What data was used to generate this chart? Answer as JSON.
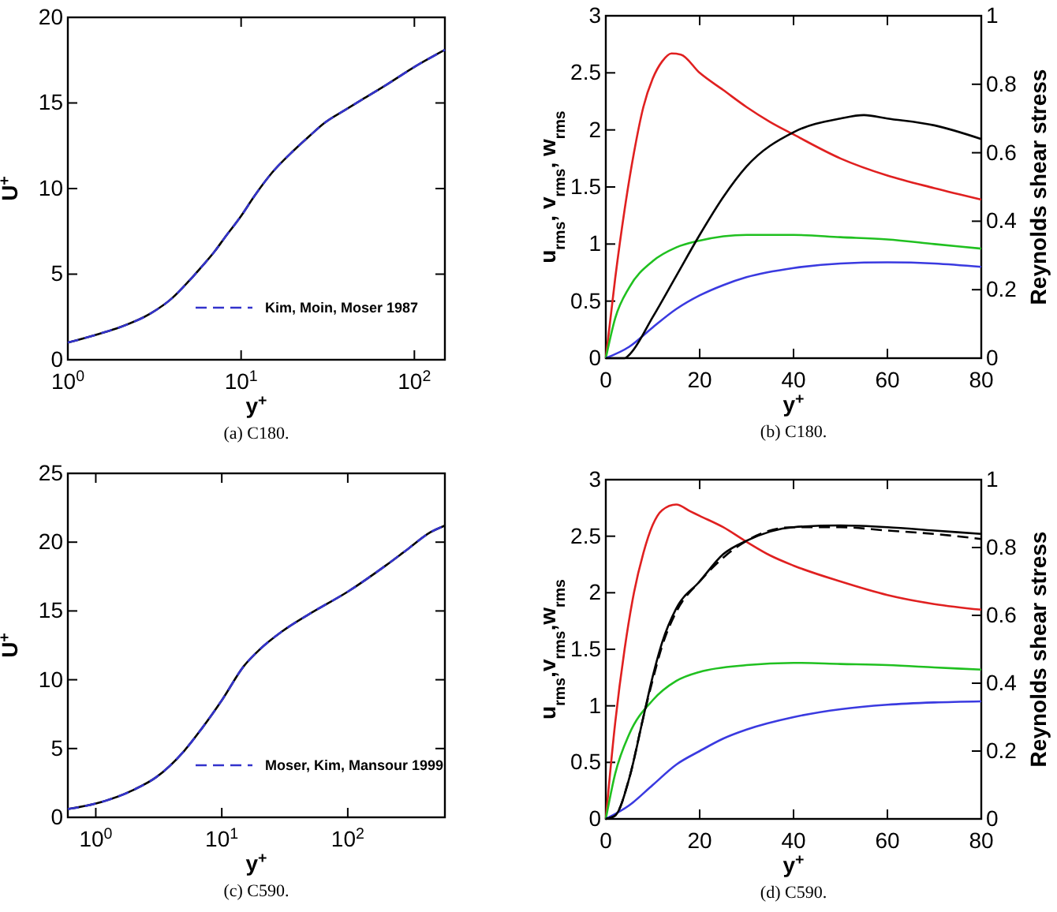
{
  "chart_data": [
    {
      "type": "line",
      "xlabel": "y$^{+}$",
      "ylabel": "U$^{+}$",
      "log": "x",
      "xlim": [
        1,
        150
      ],
      "xticks": [
        {
          "value": 1,
          "label": "10$^{0}$"
        },
        {
          "value": 10,
          "label": "10$^{1}$"
        },
        {
          "value": 100,
          "label": "10$^{2}$"
        }
      ],
      "ylim": [
        0,
        20
      ],
      "yticks": [
        0,
        5,
        10,
        15,
        20
      ],
      "legend": "bottom right",
      "annotations": [
        "(a) C180."
      ],
      "series": [
        {
          "color": "#000000",
          "line_style": "solid",
          "x": [
            1,
            1.5,
            2,
            3,
            4,
            5,
            6,
            7,
            8,
            10,
            12,
            15,
            20,
            25,
            30,
            40,
            50,
            70,
            100,
            150
          ],
          "values": [
            1.0,
            1.5,
            1.9,
            2.7,
            3.6,
            4.6,
            5.5,
            6.3,
            7.1,
            8.4,
            9.6,
            10.9,
            12.2,
            13.1,
            13.8,
            14.6,
            15.2,
            16.1,
            17.1,
            18.1
          ]
        },
        {
          "name": "Kim, Moin, Moser 1987",
          "color": "#3333cc",
          "line_style": "dashed",
          "x": [
            1,
            1.5,
            2,
            3,
            4,
            5,
            6,
            7,
            8,
            10,
            12,
            15,
            20,
            25,
            30,
            40,
            50,
            70,
            100,
            150
          ],
          "values": [
            1.0,
            1.5,
            1.9,
            2.7,
            3.6,
            4.6,
            5.5,
            6.3,
            7.1,
            8.4,
            9.6,
            10.9,
            12.2,
            13.1,
            13.8,
            14.6,
            15.2,
            16.1,
            17.1,
            18.1
          ]
        }
      ]
    },
    {
      "type": "line",
      "xlabel": "y$^{+}$",
      "ylabel": "u$_{rms}$, v$_{rms}$, w$_{rms}$",
      "y2label": "Reynolds shear stress",
      "xlim": [
        0,
        80
      ],
      "xticks": [
        0,
        20,
        40,
        60,
        80
      ],
      "ylim": [
        0,
        3
      ],
      "yticks": [
        0,
        0.5,
        1,
        1.5,
        2,
        2.5,
        3
      ],
      "y2lim": [
        0,
        1
      ],
      "y2ticks": [
        0,
        0.2,
        0.4,
        0.6,
        0.8,
        1
      ],
      "annotations": [
        "(b) C180."
      ],
      "series": [
        {
          "color": "#e02020",
          "line_style": "solid",
          "x": [
            0,
            2,
            4,
            6,
            8,
            10,
            12,
            14,
            16,
            20,
            25,
            30,
            35,
            40,
            50,
            60,
            70,
            80
          ],
          "values": [
            0,
            0.7,
            1.3,
            1.8,
            2.2,
            2.45,
            2.6,
            2.67,
            2.66,
            2.5,
            2.35,
            2.2,
            2.07,
            1.96,
            1.75,
            1.6,
            1.49,
            1.39
          ]
        },
        {
          "color": "#20c020",
          "line_style": "solid",
          "x": [
            0,
            2,
            5,
            10,
            15,
            20,
            30,
            40,
            50,
            60,
            70,
            80
          ],
          "values": [
            0,
            0.35,
            0.62,
            0.85,
            0.97,
            1.03,
            1.08,
            1.08,
            1.06,
            1.04,
            1.0,
            0.96
          ]
        },
        {
          "color": "#3a3ae0",
          "line_style": "solid",
          "x": [
            0,
            5,
            10,
            15,
            20,
            25,
            30,
            40,
            50,
            60,
            70,
            80
          ],
          "values": [
            0,
            0.1,
            0.27,
            0.43,
            0.55,
            0.64,
            0.71,
            0.79,
            0.83,
            0.84,
            0.83,
            0.8
          ]
        },
        {
          "color": "#000000",
          "line_style": "solid",
          "axis": "y2",
          "x": [
            0,
            4,
            5,
            10,
            15,
            20,
            25,
            30,
            40,
            50,
            55,
            60,
            70,
            80
          ],
          "values": [
            0,
            0,
            0.01,
            0.12,
            0.24,
            0.36,
            0.47,
            0.56,
            0.66,
            0.7,
            0.71,
            0.7,
            0.68,
            0.64
          ]
        }
      ]
    },
    {
      "type": "line",
      "xlabel": "y$^{+}$",
      "ylabel": "U$^{+}$",
      "log": "x",
      "xlim": [
        0.6,
        590
      ],
      "xticks": [
        {
          "value": 1,
          "label": "10$^{0}$"
        },
        {
          "value": 10,
          "label": "10$^{1}$"
        },
        {
          "value": 100,
          "label": "10$^{2}$"
        }
      ],
      "ylim": [
        0,
        25
      ],
      "yticks": [
        0,
        5,
        10,
        15,
        20,
        25
      ],
      "legend": "bottom right",
      "annotations": [
        "(c) C590."
      ],
      "series": [
        {
          "color": "#000000",
          "line_style": "solid",
          "x": [
            0.6,
            1,
            2,
            3,
            5,
            7,
            10,
            15,
            20,
            30,
            50,
            100,
            200,
            300,
            450,
            590
          ],
          "values": [
            0.6,
            1.0,
            2.0,
            2.9,
            4.8,
            6.5,
            8.5,
            11.0,
            12.2,
            13.5,
            14.8,
            16.4,
            18.3,
            19.5,
            20.7,
            21.2
          ]
        },
        {
          "name": "Moser, Kim, Mansour 1999",
          "color": "#3333cc",
          "line_style": "dashed",
          "x": [
            0.6,
            1,
            2,
            3,
            5,
            7,
            10,
            15,
            20,
            30,
            50,
            100,
            200,
            300,
            450,
            590
          ],
          "values": [
            0.6,
            1.0,
            2.0,
            2.9,
            4.8,
            6.5,
            8.5,
            11.0,
            12.2,
            13.5,
            14.8,
            16.4,
            18.3,
            19.5,
            20.7,
            21.2
          ]
        }
      ]
    },
    {
      "type": "line",
      "xlabel": "y$^{+}$",
      "ylabel": "u$_{rms}$,v$_{rms}$,w$_{rms}$",
      "y2label": "Reynolds shear stress",
      "xlim": [
        0,
        80
      ],
      "xticks": [
        0,
        20,
        40,
        60,
        80
      ],
      "ylim": [
        0,
        3
      ],
      "yticks": [
        0,
        0.5,
        1,
        1.5,
        2,
        2.5,
        3
      ],
      "y2lim": [
        0,
        1
      ],
      "y2ticks": [
        0,
        0.2,
        0.4,
        0.6,
        0.8,
        1
      ],
      "annotations": [
        "(d) C590."
      ],
      "series": [
        {
          "color": "#e02020",
          "line_style": "solid",
          "x": [
            0,
            2,
            4,
            6,
            8,
            10,
            12,
            15,
            18,
            20,
            25,
            30,
            35,
            40,
            50,
            60,
            70,
            80
          ],
          "values": [
            0,
            0.85,
            1.5,
            2.0,
            2.35,
            2.6,
            2.73,
            2.78,
            2.72,
            2.68,
            2.58,
            2.45,
            2.33,
            2.24,
            2.1,
            1.98,
            1.9,
            1.85
          ]
        },
        {
          "color": "#20c020",
          "line_style": "solid",
          "x": [
            0,
            2,
            5,
            10,
            15,
            20,
            30,
            40,
            50,
            60,
            70,
            80
          ],
          "values": [
            0,
            0.4,
            0.75,
            1.05,
            1.22,
            1.3,
            1.36,
            1.38,
            1.37,
            1.36,
            1.34,
            1.32
          ]
        },
        {
          "color": "#3a3ae0",
          "line_style": "solid",
          "x": [
            0,
            5,
            10,
            15,
            20,
            25,
            30,
            40,
            50,
            60,
            70,
            80
          ],
          "values": [
            0,
            0.12,
            0.3,
            0.48,
            0.6,
            0.71,
            0.79,
            0.9,
            0.97,
            1.01,
            1.03,
            1.04
          ]
        },
        {
          "color": "#000000",
          "line_style": "dashed",
          "axis": "y2",
          "x": [
            0,
            2,
            5,
            8,
            10,
            12,
            15,
            20,
            25,
            30,
            40,
            50,
            60,
            70,
            80
          ],
          "values": [
            0,
            0.01,
            0.12,
            0.3,
            0.41,
            0.51,
            0.61,
            0.7,
            0.77,
            0.82,
            0.86,
            0.86,
            0.85,
            0.84,
            0.825
          ]
        },
        {
          "color": "#000000",
          "line_style": "solid",
          "axis": "y2",
          "x": [
            0,
            2,
            5,
            8,
            10,
            12,
            15,
            20,
            25,
            30,
            40,
            50,
            60,
            70,
            80
          ],
          "values": [
            0,
            0.01,
            0.12,
            0.3,
            0.42,
            0.52,
            0.62,
            0.7,
            0.78,
            0.82,
            0.86,
            0.865,
            0.86,
            0.85,
            0.84
          ]
        }
      ]
    }
  ]
}
